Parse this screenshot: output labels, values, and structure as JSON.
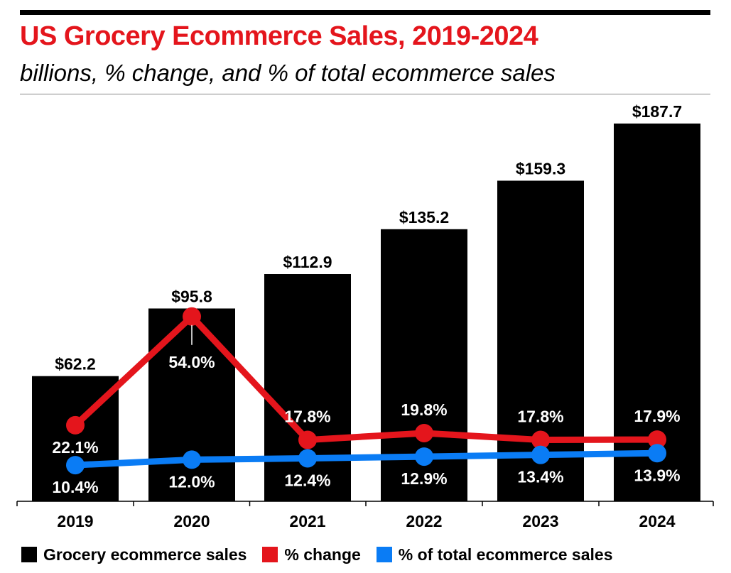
{
  "title": "US Grocery Ecommerce Sales, 2019-2024",
  "subtitle": "billions, % change, and % of total ecommerce sales",
  "colors": {
    "title": "#e4151c",
    "bars": "#000000",
    "change": "#e4151c",
    "share": "#0a7cf5",
    "label_light": "#ffffff"
  },
  "legend": [
    {
      "label": "Grocery ecommerce sales",
      "color": "#000000"
    },
    {
      "label": "% change",
      "color": "#e4151c"
    },
    {
      "label": "% of total ecommerce sales",
      "color": "#0a7cf5"
    }
  ],
  "chart_data": {
    "type": "bar",
    "categories": [
      "2019",
      "2020",
      "2021",
      "2022",
      "2023",
      "2024"
    ],
    "series": [
      {
        "name": "Grocery ecommerce sales",
        "type": "bar",
        "values": [
          62.2,
          95.8,
          112.9,
          135.2,
          159.3,
          187.7
        ],
        "labels": [
          "$62.2",
          "$95.8",
          "$112.9",
          "$135.2",
          "$159.3",
          "$187.7"
        ]
      },
      {
        "name": "% change",
        "type": "line",
        "values": [
          22.1,
          54.0,
          17.8,
          19.8,
          17.8,
          17.9
        ],
        "labels": [
          "22.1%",
          "54.0%",
          "17.8%",
          "19.8%",
          "17.8%",
          "17.9%"
        ]
      },
      {
        "name": "% of total ecommerce sales",
        "type": "line",
        "values": [
          10.4,
          12.0,
          12.4,
          12.9,
          13.4,
          13.9
        ],
        "labels": [
          "10.4%",
          "12.0%",
          "12.4%",
          "12.9%",
          "13.4%",
          "13.9%"
        ]
      }
    ],
    "ylim": [
      0,
      187.7
    ],
    "grid": false,
    "legend_position": "bottom"
  }
}
